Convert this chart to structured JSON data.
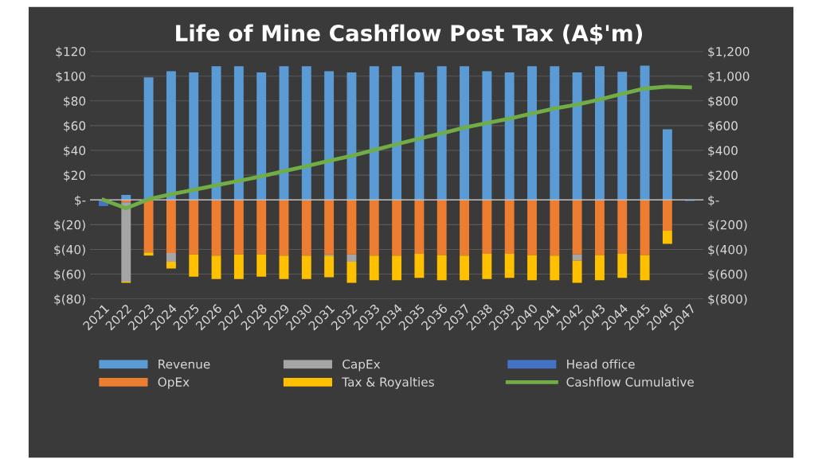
{
  "chart_data": {
    "type": "bar",
    "title": "Life of Mine Cashflow Post Tax (A$'m)",
    "stacked": true,
    "grid": "y",
    "legend": "bottom",
    "categories": [
      "2021",
      "2022",
      "2023",
      "2024",
      "2025",
      "2026",
      "2027",
      "2028",
      "2029",
      "2030",
      "2031",
      "2032",
      "2033",
      "2034",
      "2035",
      "2036",
      "2037",
      "2038",
      "2039",
      "2040",
      "2041",
      "2042",
      "2043",
      "2044",
      "2045",
      "2046",
      "2047"
    ],
    "ylim": [
      -80,
      120
    ],
    "yticks": [
      {
        "value": -80,
        "label": "$(80)"
      },
      {
        "value": -60,
        "label": "$(60)"
      },
      {
        "value": -40,
        "label": "$(40)"
      },
      {
        "value": -20,
        "label": "$(20)"
      },
      {
        "value": 0,
        "label": "$-"
      },
      {
        "value": 20,
        "label": "$20"
      },
      {
        "value": 40,
        "label": "$40"
      },
      {
        "value": 60,
        "label": "$60"
      },
      {
        "value": 80,
        "label": "$80"
      },
      {
        "value": 100,
        "label": "$100"
      },
      {
        "value": 120,
        "label": "$120"
      }
    ],
    "y2lim": [
      -800,
      1200
    ],
    "y2ticks": [
      {
        "value": -800,
        "label": "$(800)"
      },
      {
        "value": -600,
        "label": "$(600)"
      },
      {
        "value": -400,
        "label": "$(400)"
      },
      {
        "value": -200,
        "label": "$(200)"
      },
      {
        "value": 0,
        "label": "$-"
      },
      {
        "value": 200,
        "label": "$200"
      },
      {
        "value": 400,
        "label": "$400"
      },
      {
        "value": 600,
        "label": "$600"
      },
      {
        "value": 800,
        "label": "$800"
      },
      {
        "value": 1000,
        "label": "$1,000"
      },
      {
        "value": 1200,
        "label": "$1,200"
      }
    ],
    "series": [
      {
        "name": "Revenue",
        "color": "#5b9bd5",
        "values": [
          null,
          4,
          99,
          104,
          103,
          108,
          108,
          103,
          108,
          108,
          104,
          103,
          108,
          108,
          103,
          108,
          108,
          104,
          103,
          108,
          108,
          103,
          108,
          103.5,
          108.5,
          57,
          null
        ]
      },
      {
        "name": "OpEx",
        "color": "#ed7d31",
        "values": [
          null,
          -2,
          -42.5,
          -43,
          -44,
          -45,
          -44,
          -44,
          -45,
          -45,
          -44,
          -44,
          -45,
          -45,
          -43.5,
          -44.5,
          -45,
          -43.5,
          -43.5,
          -44.5,
          -45,
          -44,
          -44.5,
          -43.5,
          -44.5,
          -25,
          null
        ]
      },
      {
        "name": "CapEx",
        "color": "#a5a5a5",
        "values": [
          null,
          -64,
          null,
          -7,
          null,
          null,
          null,
          null,
          null,
          null,
          -1,
          -6,
          null,
          null,
          null,
          null,
          null,
          null,
          null,
          null,
          null,
          -5,
          null,
          null,
          null,
          null,
          null
        ]
      },
      {
        "name": "Tax & Royalties",
        "color": "#ffc000",
        "values": [
          null,
          -1,
          -2.5,
          -5.5,
          -18,
          -19,
          -20,
          -18,
          -19,
          -19,
          -17.5,
          -17,
          -20,
          -20,
          -19.5,
          -20.5,
          -20,
          -20.5,
          -19.5,
          -20.5,
          -20,
          -18,
          -20.5,
          -19.5,
          -20.5,
          -10.5,
          null
        ]
      },
      {
        "name": "Head office",
        "color": "#4472c4",
        "values": [
          -5,
          null,
          null,
          null,
          null,
          null,
          null,
          null,
          null,
          null,
          null,
          null,
          null,
          null,
          null,
          null,
          null,
          null,
          null,
          null,
          null,
          null,
          null,
          null,
          null,
          null,
          -1
        ]
      },
      {
        "name": "Cashflow Cumulative",
        "type": "line",
        "axis": "y2",
        "color": "#70ad47",
        "values": [
          0,
          -68,
          5,
          45,
          81,
          118,
          153,
          190,
          232,
          273,
          315,
          356,
          402,
          450,
          495,
          538,
          584,
          621,
          656,
          698,
          739,
          770,
          811,
          857,
          900,
          915,
          909
        ]
      }
    ]
  }
}
